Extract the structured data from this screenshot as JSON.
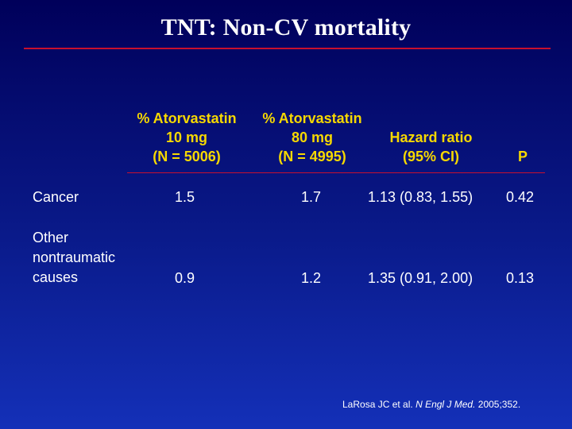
{
  "slide": {
    "title": "TNT: Non-CV mortality"
  },
  "table": {
    "headers": {
      "col1": [
        "% Atorvastatin",
        "10 mg",
        "(N = 5006)"
      ],
      "col2": [
        "% Atorvastatin",
        "80 mg",
        "(N = 4995)"
      ],
      "col3": [
        "Hazard ratio",
        "(95% CI)"
      ],
      "col4": [
        "P"
      ]
    },
    "rows": [
      {
        "label": [
          "Cancer"
        ],
        "atorva10": "1.5",
        "atorva80": "1.7",
        "hazard_ratio": "1.13 (0.83, 1.55)",
        "p": "0.42"
      },
      {
        "label": [
          "Other",
          "nontraumatic",
          "causes"
        ],
        "atorva10": "0.9",
        "atorva80": "1.2",
        "hazard_ratio": "1.35 (0.91, 2.00)",
        "p": "0.13"
      }
    ]
  },
  "citation": {
    "authors": "LaRosa JC et al.",
    "journal": "N Engl J Med.",
    "details": "2005;352."
  },
  "colors": {
    "header_text": "#f6d800",
    "rule": "#c8102e",
    "background_top": "#00005a",
    "background_bottom": "#1430b8"
  }
}
